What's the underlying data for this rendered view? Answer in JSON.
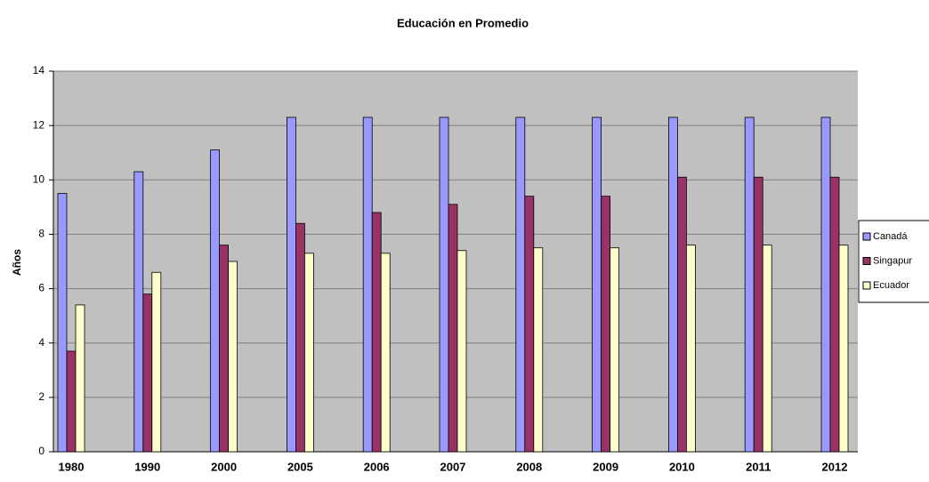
{
  "chart_data": {
    "type": "bar",
    "title": "Educación en Promedio",
    "y_label": "Años",
    "categories": [
      "1980",
      "1990",
      "2000",
      "2005",
      "2006",
      "2007",
      "2008",
      "2009",
      "2010",
      "2011",
      "2012"
    ],
    "series": [
      {
        "name": "Canadá",
        "color": "#9999ff",
        "values": [
          9.5,
          10.3,
          11.1,
          12.3,
          12.3,
          12.3,
          12.3,
          12.3,
          12.3,
          12.3,
          12.3
        ]
      },
      {
        "name": "Singapur",
        "color": "#993366",
        "values": [
          3.7,
          5.8,
          7.6,
          8.4,
          8.8,
          9.1,
          9.4,
          9.4,
          10.1,
          10.1,
          10.1
        ]
      },
      {
        "name": "Ecuador",
        "color": "#ffffcc",
        "values": [
          5.4,
          6.6,
          7.0,
          7.3,
          7.3,
          7.4,
          7.5,
          7.5,
          7.6,
          7.6,
          7.6
        ]
      }
    ],
    "ylim": [
      0,
      14
    ],
    "yticks": [
      0,
      2,
      4,
      6,
      8,
      10,
      12,
      14
    ],
    "grid": true,
    "legend": "right"
  }
}
